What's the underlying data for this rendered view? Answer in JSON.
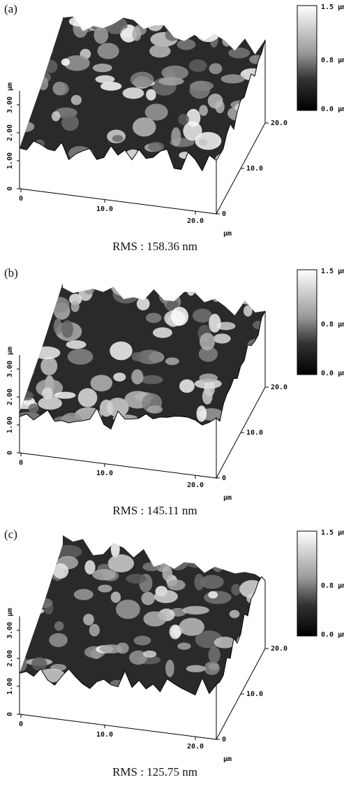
{
  "panels": [
    {
      "label": "(a)",
      "colorbar": [
        "1.5 µm",
        "0.8 µm",
        "0.0 µm"
      ],
      "z_unit": "µm",
      "z_ticks": [
        "3.00",
        "2.00",
        "1.00",
        "0"
      ],
      "x_ticks": [
        "0",
        "10.0",
        "20.0"
      ],
      "y_ticks": [
        "0",
        "10.0",
        "20.0"
      ],
      "y_unit": "µm",
      "caption": "RMS : 158.36 nm"
    },
    {
      "label": "(b)",
      "colorbar": [
        "1.5 µm",
        "0.8 µm",
        "0.0 µm"
      ],
      "z_unit": "µm",
      "z_ticks": [
        "3.00",
        "2.00",
        "1.00",
        "0"
      ],
      "x_ticks": [
        "0",
        "10.0",
        "20.0"
      ],
      "y_ticks": [
        "0",
        "10.0",
        "20.0"
      ],
      "y_unit": "µm",
      "caption": "RMS : 145.11 nm"
    },
    {
      "label": "(c)",
      "colorbar": [
        "1.5 µm",
        "0.8 µm",
        "0.0 µm"
      ],
      "z_unit": "µm",
      "z_ticks": [
        "3.00",
        "2.00",
        "1.00",
        "0"
      ],
      "x_ticks": [
        "0",
        "10.0",
        "20.0"
      ],
      "y_ticks": [
        "0",
        "10.0",
        "20.0"
      ],
      "y_unit": "µm",
      "caption": "RMS : 125.75 nm"
    }
  ]
}
